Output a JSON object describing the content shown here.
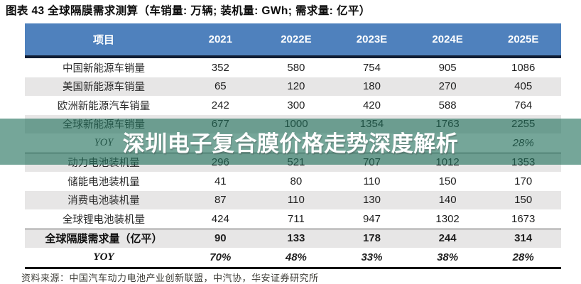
{
  "page": {
    "title": "图表 43 全球隔膜需求测算（车销量: 万辆; 装机量: GWh; 需求量: 亿平）",
    "source": "资料来源：中国汽车动力电池产业创新联盟，中汽协，华安证券研究所"
  },
  "watermark": {
    "text": "深圳电子复合膜价格走势深度解析"
  },
  "colors": {
    "header_bg": "#4f81bd",
    "header_text": "#ffffff",
    "border_dark": "#101d33",
    "row_alt_bg": "#e7e6e6",
    "band_color": "rgba(33,112,90,0.62)",
    "watermark_text_color": "#ffffff"
  },
  "table": {
    "columns": [
      "项目",
      "2021",
      "2022E",
      "2023E",
      "2024E",
      "2025E"
    ],
    "rows": [
      {
        "label": "中国新能源车销量",
        "values": [
          "352",
          "580",
          "754",
          "905",
          "1086"
        ]
      },
      {
        "label": "美国新能源车销量",
        "values": [
          "65",
          "120",
          "180",
          "270",
          "405"
        ]
      },
      {
        "label": "欧洲新能源汽车销量",
        "values": [
          "242",
          "300",
          "420",
          "588",
          "764"
        ]
      },
      {
        "label": "全球新能源车销量",
        "values": [
          "677",
          "1000",
          "1354",
          "1763",
          "2255"
        ]
      },
      {
        "label": "YOY",
        "values": [
          "",
          "",
          "",
          "",
          "28%"
        ],
        "style": "italic"
      },
      {
        "label": "动力电池装机量",
        "values": [
          "296",
          "521",
          "707",
          "1012",
          "1353"
        ],
        "divider_top": true
      },
      {
        "label": "储能电池装机量",
        "values": [
          "41",
          "80",
          "110",
          "150",
          "170"
        ]
      },
      {
        "label": "消费电池装机量",
        "values": [
          "87",
          "110",
          "130",
          "140",
          "150"
        ]
      },
      {
        "label": "全球锂电池装机量",
        "values": [
          "424",
          "711",
          "947",
          "1302",
          "1673"
        ]
      },
      {
        "label": "全球隔膜需求量（亿平）",
        "values": [
          "90",
          "133",
          "178",
          "244",
          "314"
        ],
        "style": "bold",
        "divider_top": true
      },
      {
        "label": "YOY",
        "values": [
          "70%",
          "48%",
          "33%",
          "38%",
          "28%"
        ],
        "style": "bold-italic"
      }
    ]
  }
}
